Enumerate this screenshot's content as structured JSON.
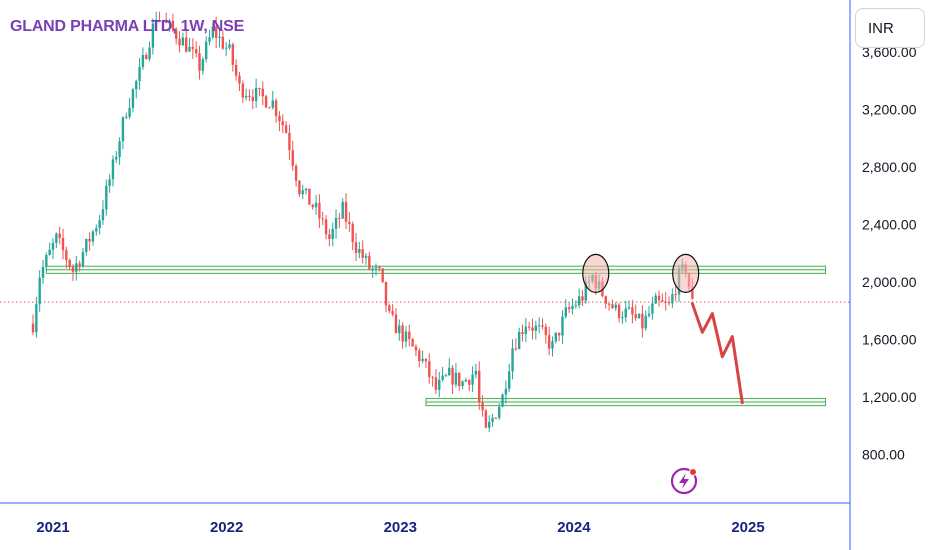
{
  "chart_title": "GLAND PHARMA LTD, 1W, NSE",
  "currency": "INR",
  "price_axis_labels": [
    "3,600.00",
    "3,200.00",
    "2,800.00",
    "2,400.00",
    "2,000.00",
    "1,600.00",
    "1,200.00",
    "800.00"
  ],
  "time_axis_labels": [
    "2021",
    "2022",
    "2023",
    "2024",
    "2025"
  ],
  "colors": {
    "up": "#26a69a",
    "down": "#ef5350",
    "zone": "#4caf50",
    "zone_fill": "#e8f5e9",
    "projection": "#d84444",
    "current_price_line": "#ef5350",
    "axis_line": "#2962ff",
    "circle_fill": "#f5b7b1",
    "title": "#7b3fb5",
    "logo": "#9c27b0"
  },
  "icons": {
    "logo": "lightning-bolt-icon"
  },
  "chart_data": {
    "type": "candlestick",
    "title": "GLAND PHARMA LTD, 1W, NSE",
    "symbol": "GLAND PHARMA LTD",
    "exchange": "NSE",
    "timeframe": "1W",
    "currency": "INR",
    "ylim": [
      550,
      4000
    ],
    "y_ticks": [
      800,
      1200,
      1600,
      2000,
      2400,
      2800,
      3200,
      3600
    ],
    "x_ticks": [
      "2021",
      "2022",
      "2023",
      "2024",
      "2025"
    ],
    "grid": false,
    "close_path": [
      [
        "2020-11-20",
        1710
      ],
      [
        "2020-12-04",
        2050
      ],
      [
        "2021-01-08",
        2300
      ],
      [
        "2021-02-12",
        2080
      ],
      [
        "2021-03-12",
        2250
      ],
      [
        "2021-04-09",
        2450
      ],
      [
        "2021-05-07",
        2800
      ],
      [
        "2021-06-04",
        3200
      ],
      [
        "2021-07-02",
        3450
      ],
      [
        "2021-08-06",
        3850
      ],
      [
        "2021-09-10",
        3750
      ],
      [
        "2021-10-08",
        3650
      ],
      [
        "2021-11-05",
        3500
      ],
      [
        "2021-12-03",
        3750
      ],
      [
        "2022-01-07",
        3600
      ],
      [
        "2022-01-28",
        3350
      ],
      [
        "2022-03-04",
        3300
      ],
      [
        "2022-04-08",
        3250
      ],
      [
        "2022-05-06",
        3050
      ],
      [
        "2022-06-03",
        2650
      ],
      [
        "2022-07-08",
        2500
      ],
      [
        "2022-08-05",
        2300
      ],
      [
        "2022-09-02",
        2500
      ],
      [
        "2022-09-30",
        2250
      ],
      [
        "2022-10-28",
        2100
      ],
      [
        "2022-11-18",
        2050
      ],
      [
        "2022-12-09",
        1750
      ],
      [
        "2023-01-13",
        1600
      ],
      [
        "2023-02-17",
        1450
      ],
      [
        "2023-03-17",
        1250
      ],
      [
        "2023-04-14",
        1350
      ],
      [
        "2023-05-12",
        1300
      ],
      [
        "2023-06-09",
        1380
      ],
      [
        "2023-06-16",
        1150
      ],
      [
        "2023-06-30",
        950
      ],
      [
        "2023-08-04",
        1200
      ],
      [
        "2023-08-25",
        1550
      ],
      [
        "2023-09-22",
        1720
      ],
      [
        "2023-10-20",
        1660
      ],
      [
        "2023-11-17",
        1550
      ],
      [
        "2023-12-15",
        1780
      ],
      [
        "2024-01-19",
        1900
      ],
      [
        "2024-02-09",
        2040
      ],
      [
        "2024-03-01",
        1920
      ],
      [
        "2024-03-29",
        1800
      ],
      [
        "2024-04-26",
        1780
      ],
      [
        "2024-05-24",
        1700
      ],
      [
        "2024-06-21",
        1850
      ],
      [
        "2024-07-19",
        1830
      ],
      [
        "2024-08-09",
        2040
      ],
      [
        "2024-08-23",
        2100
      ],
      [
        "2024-09-06",
        1850
      ]
    ],
    "support_resistance_zones": [
      {
        "from": "2020-12-18",
        "to": "2025-06-13",
        "low": 2060,
        "high": 2110
      },
      {
        "from": "2023-02-24",
        "to": "2025-06-13",
        "low": 1140,
        "high": 1190
      }
    ],
    "highlight_circles": [
      {
        "date": "2024-02-16",
        "price": 2060
      },
      {
        "date": "2024-08-23",
        "price": 2060
      }
    ],
    "projection_path": [
      [
        "2024-09-06",
        1850
      ],
      [
        "2024-09-27",
        1650
      ],
      [
        "2024-10-18",
        1780
      ],
      [
        "2024-11-08",
        1480
      ],
      [
        "2024-11-29",
        1620
      ],
      [
        "2024-12-20",
        1160
      ]
    ],
    "current_price": 1860
  }
}
